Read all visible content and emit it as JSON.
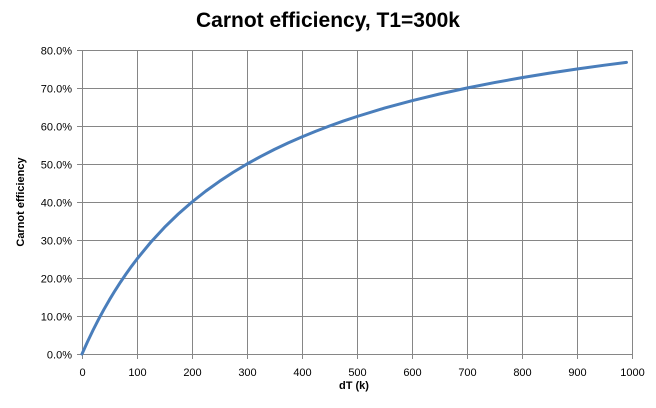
{
  "chart_data": {
    "type": "line",
    "title": "Carnot efficiency, T1=300k",
    "xlabel": "dT (k)",
    "ylabel": "Carnot efficiency",
    "xlim": [
      0,
      1000
    ],
    "ylim": [
      0,
      0.8
    ],
    "x_ticks": [
      0,
      100,
      200,
      300,
      400,
      500,
      600,
      700,
      800,
      900,
      1000
    ],
    "x_tick_labels": [
      "0",
      "100",
      "200",
      "300",
      "400",
      "500",
      "600",
      "700",
      "800",
      "900",
      "1000"
    ],
    "y_ticks": [
      0,
      0.1,
      0.2,
      0.3,
      0.4,
      0.5,
      0.6,
      0.7,
      0.8
    ],
    "y_tick_labels": [
      "0.0%",
      "10.0%",
      "20.0%",
      "30.0%",
      "40.0%",
      "50.0%",
      "60.0%",
      "70.0%",
      "80.0%"
    ],
    "grid": true,
    "legend": "none",
    "series": [
      {
        "color": "#4a7ebb",
        "x": [
          0,
          10,
          20,
          30,
          40,
          50,
          60,
          70,
          80,
          90,
          100,
          125,
          150,
          175,
          200,
          225,
          250,
          275,
          300,
          325,
          350,
          375,
          400,
          425,
          450,
          475,
          500,
          550,
          600,
          650,
          700,
          750,
          800,
          850,
          900,
          950,
          990
        ],
        "y": [
          0.0,
          0.0323,
          0.0625,
          0.0909,
          0.1176,
          0.1429,
          0.1667,
          0.1892,
          0.2105,
          0.2308,
          0.25,
          0.2941,
          0.3333,
          0.3684,
          0.4,
          0.4286,
          0.4545,
          0.4783,
          0.5,
          0.52,
          0.5385,
          0.5556,
          0.5714,
          0.5862,
          0.6,
          0.6129,
          0.625,
          0.6471,
          0.6667,
          0.6842,
          0.7,
          0.7143,
          0.7273,
          0.7391,
          0.75,
          0.76,
          0.7674
        ]
      }
    ]
  }
}
